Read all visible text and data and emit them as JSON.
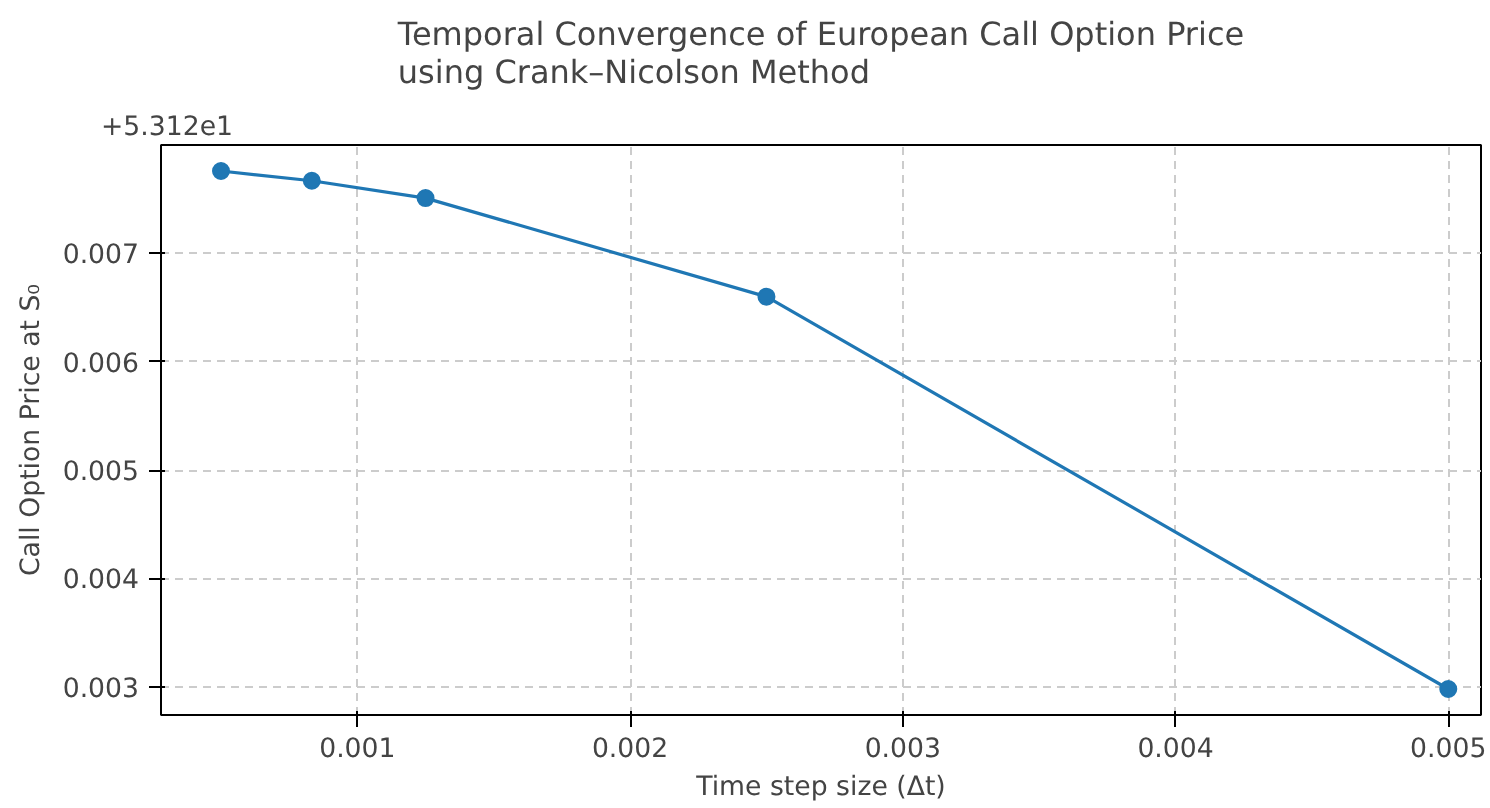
{
  "chart_data": {
    "type": "line",
    "title": "Temporal Convergence of European Call Option Price\nusing Crank–Nicolson Method",
    "xlabel": "Time step size (Δt)",
    "ylabel": "Call Option Price at S₀",
    "annotations": [
      "+5.312e1"
    ],
    "x": [
      0.0005,
      0.000833,
      0.00125,
      0.0025,
      0.005
    ],
    "series": [
      {
        "color": "#1f77b4",
        "values": [
          0.00776,
          0.00767,
          0.00751,
          0.0066,
          0.00298
        ]
      }
    ],
    "xlim": [
      0.00028,
      0.00512
    ],
    "ylim": [
      0.00274,
      0.008
    ],
    "xticks": [
      0.001,
      0.002,
      0.003,
      0.004,
      0.005
    ],
    "yticks": [
      0.003,
      0.004,
      0.005,
      0.006,
      0.007
    ],
    "grid": true,
    "marker": "circle",
    "line_style": "solid"
  }
}
